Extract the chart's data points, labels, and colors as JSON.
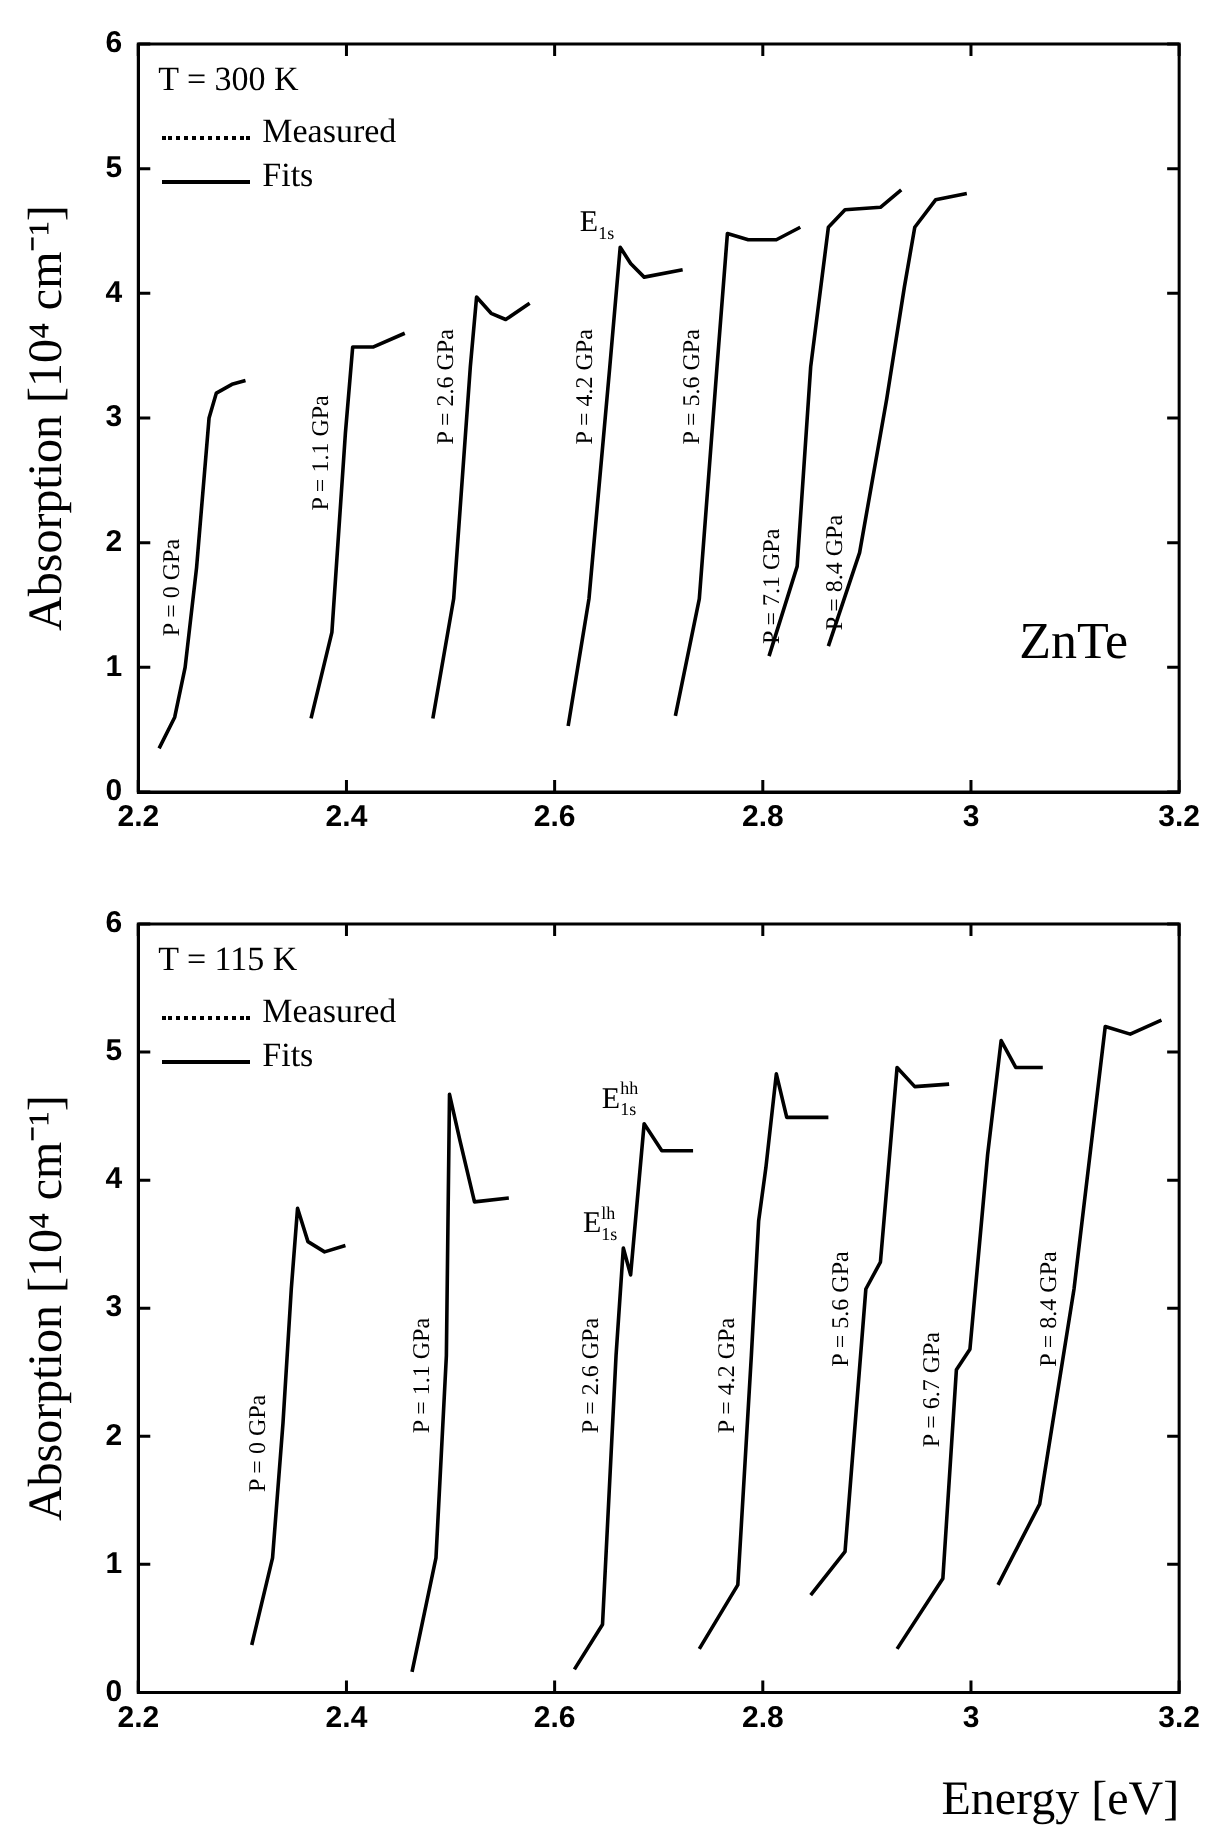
{
  "chart_data": [
    {
      "type": "line",
      "ylabel": "Absorption [10⁴ cm⁻¹]",
      "annotations": [
        "T = 300 K",
        "Measured",
        "Fits",
        "ZnTe",
        {
          "text": "E$_{1s}$",
          "x": 2.663,
          "y": 4.37
        }
      ],
      "series": [
        {
          "name": "P = 0 GPa",
          "color": "#000000",
          "x": [
            2.22,
            2.235,
            2.245,
            2.256,
            2.263,
            2.268,
            2.275,
            2.29,
            2.303
          ],
          "values": [
            0.35,
            0.6,
            1.0,
            1.8,
            2.5,
            3.0,
            3.2,
            3.27,
            3.3
          ]
        },
        {
          "name": "P = 1.1 GPa",
          "color": "#000000",
          "x": [
            2.366,
            2.386,
            2.399,
            2.406,
            2.426,
            2.456
          ],
          "values": [
            0.59,
            1.28,
            2.88,
            3.57,
            3.57,
            3.68
          ]
        },
        {
          "name": "P = 2.6 GPa",
          "color": "#000000",
          "x": [
            2.483,
            2.503,
            2.519,
            2.525,
            2.539,
            2.553,
            2.576
          ],
          "values": [
            0.59,
            1.55,
            3.41,
            3.97,
            3.84,
            3.79,
            3.92
          ]
        },
        {
          "name": "P = 4.2 GPa",
          "color": "#000000",
          "x": [
            2.613,
            2.633,
            2.653,
            2.663,
            2.673,
            2.686,
            2.723
          ],
          "values": [
            0.53,
            1.55,
            3.41,
            4.37,
            4.24,
            4.13,
            4.19
          ]
        },
        {
          "name": "P = 5.6 GPa",
          "color": "#000000",
          "x": [
            2.716,
            2.739,
            2.756,
            2.766,
            2.786,
            2.813,
            2.836
          ],
          "values": [
            0.61,
            1.55,
            3.41,
            4.48,
            4.43,
            4.43,
            4.53
          ]
        },
        {
          "name": "P = 7.1 GPa",
          "color": "#000000",
          "x": [
            2.806,
            2.833,
            2.846,
            2.863,
            2.879,
            2.913,
            2.933
          ],
          "values": [
            1.09,
            1.81,
            3.41,
            4.53,
            4.67,
            4.69,
            4.83
          ]
        },
        {
          "name": "P = 8.4 GPa",
          "color": "#000000",
          "x": [
            2.863,
            2.893,
            2.919,
            2.936,
            2.946,
            2.966,
            2.996
          ],
          "values": [
            1.17,
            1.92,
            3.15,
            4.05,
            4.53,
            4.75,
            4.8
          ]
        }
      ],
      "xlim": [
        2.2,
        3.2
      ],
      "xticks": [
        2.2,
        2.4,
        2.6,
        2.8,
        3,
        3.2
      ],
      "ylim": [
        0,
        6
      ],
      "yticks": [
        0,
        1,
        2,
        3,
        4,
        5,
        6
      ],
      "grid": false,
      "marker": "none",
      "line_style": "solid"
    },
    {
      "type": "line",
      "ylabel": "Absorption [10⁴ cm⁻¹]",
      "xlabel": "Energy [eV]",
      "annotations": [
        "T = 115 K",
        "Measured",
        "Fits",
        {
          "text": "E$^{hh}$$_{1s}$",
          "x": 2.686,
          "y": 4.44
        },
        {
          "text": "E$^{lh}$$_{1s}$",
          "x": 2.666,
          "y": 3.47
        }
      ],
      "series": [
        {
          "name": "P = 0 GPa",
          "color": "#000000",
          "x": [
            2.309,
            2.329,
            2.339,
            2.347,
            2.353,
            2.363,
            2.379,
            2.399
          ],
          "values": [
            0.37,
            1.05,
            2.1,
            3.15,
            3.78,
            3.52,
            3.44,
            3.49
          ]
        },
        {
          "name": "P = 1.1 GPa",
          "color": "#000000",
          "x": [
            2.463,
            2.486,
            2.496,
            2.499,
            2.509,
            2.523,
            2.556
          ],
          "values": [
            0.16,
            1.05,
            2.63,
            4.67,
            4.31,
            3.83,
            3.86
          ]
        },
        {
          "name": "P = 2.6 GPa",
          "color": "#000000",
          "x": [
            2.619,
            2.646,
            2.659,
            2.666,
            2.673,
            2.686,
            2.703,
            2.733
          ],
          "values": [
            0.18,
            0.53,
            2.63,
            3.47,
            3.26,
            4.44,
            4.23,
            4.23
          ]
        },
        {
          "name": "P = 4.2 GPa",
          "color": "#000000",
          "x": [
            2.739,
            2.776,
            2.789,
            2.796,
            2.803,
            2.813,
            2.823,
            2.863
          ],
          "values": [
            0.34,
            0.84,
            2.63,
            3.68,
            4.1,
            4.83,
            4.49,
            4.49
          ]
        },
        {
          "name": "P = 5.6 GPa",
          "color": "#000000",
          "x": [
            2.846,
            2.879,
            2.899,
            2.913,
            2.929,
            2.946,
            2.979
          ],
          "values": [
            0.76,
            1.1,
            3.15,
            3.36,
            4.88,
            4.73,
            4.75
          ]
        },
        {
          "name": "P = 6.7 GPa",
          "color": "#000000",
          "x": [
            2.929,
            2.973,
            2.986,
            2.999,
            3.016,
            3.029,
            3.043,
            3.069
          ],
          "values": [
            0.34,
            0.89,
            2.52,
            2.68,
            4.2,
            5.09,
            4.88,
            4.88
          ]
        },
        {
          "name": "P = 8.4 GPa",
          "color": "#000000",
          "x": [
            3.026,
            3.066,
            3.099,
            3.129,
            3.153,
            3.183
          ],
          "values": [
            0.84,
            1.47,
            3.15,
            5.2,
            5.14,
            5.25
          ]
        }
      ],
      "xlim": [
        2.2,
        3.2
      ],
      "xticks": [
        2.2,
        2.4,
        2.6,
        2.8,
        3,
        3.2
      ],
      "ylim": [
        0,
        6
      ],
      "yticks": [
        0,
        1,
        2,
        3,
        4,
        5,
        6
      ],
      "grid": false,
      "marker": "none",
      "line_style": "solid"
    }
  ]
}
